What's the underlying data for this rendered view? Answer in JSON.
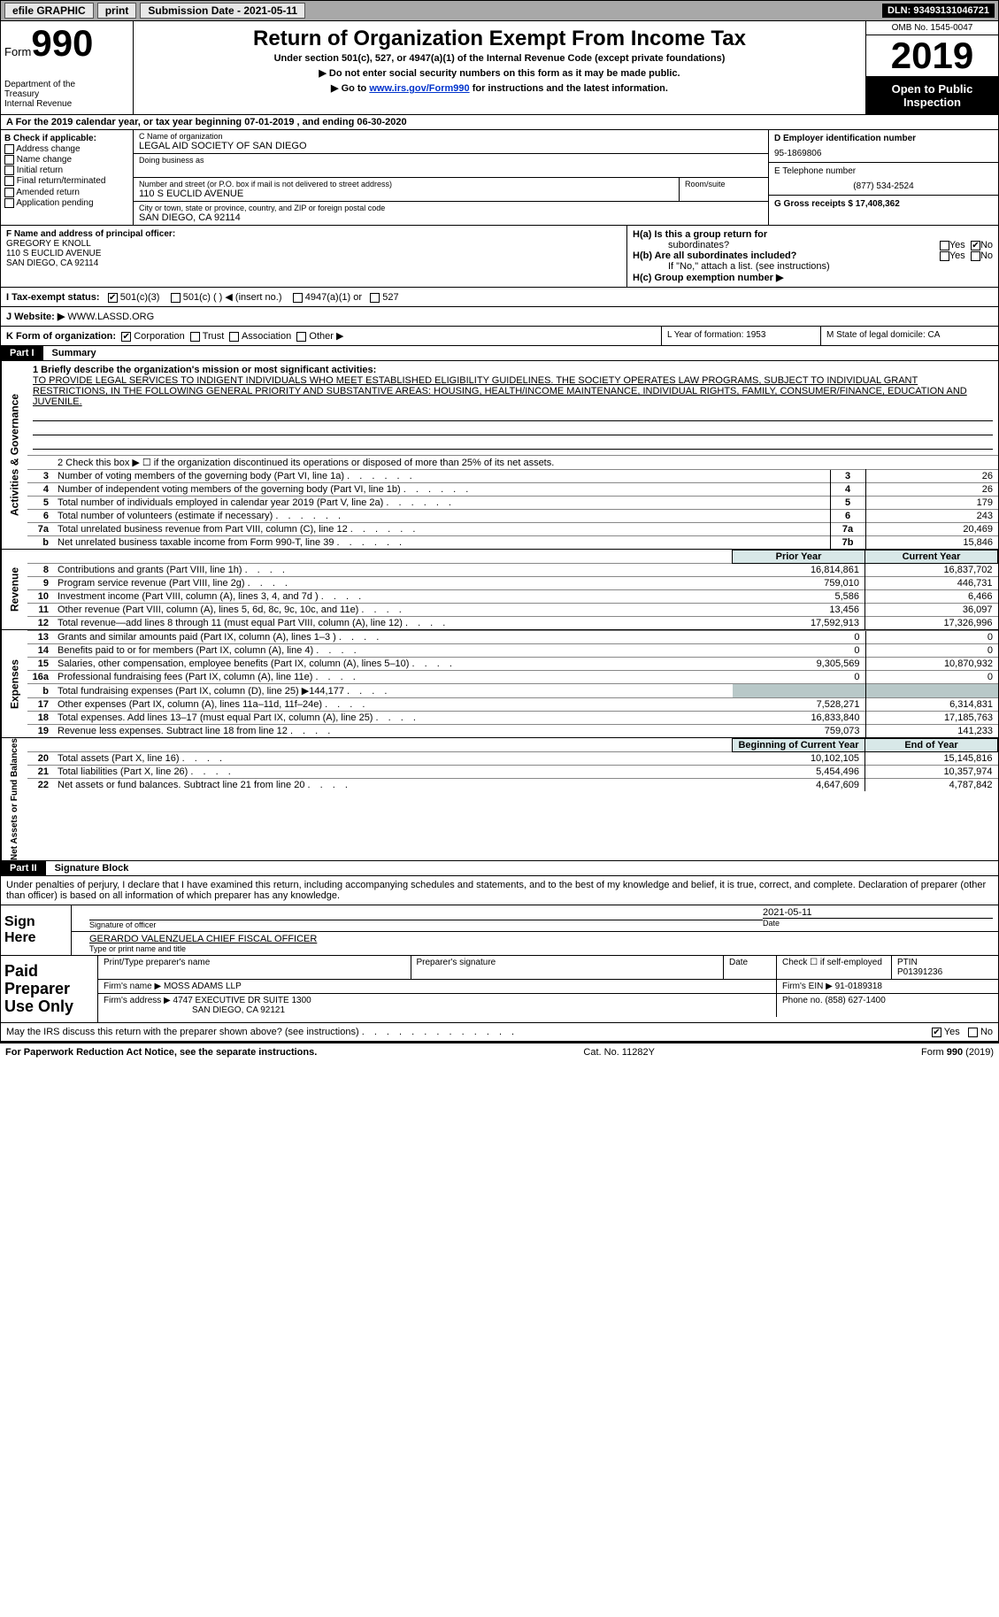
{
  "topbar": {
    "efile": "efile GRAPHIC",
    "print": "print",
    "submission": "Submission Date - 2021-05-11",
    "dln": "DLN: 93493131046721"
  },
  "header": {
    "form_word": "Form",
    "form_num": "990",
    "dept1": "Department of the",
    "dept2": "Treasury",
    "dept3": "Internal Revenue",
    "title": "Return of Organization Exempt From Income Tax",
    "subtitle": "Under section 501(c), 527, or 4947(a)(1) of the Internal Revenue Code (except private foundations)",
    "note1": "▶ Do not enter social security numbers on this form as it may be made public.",
    "note2_pre": "▶ Go to ",
    "note2_link": "www.irs.gov/Form990",
    "note2_post": " for instructions and the latest information.",
    "omb": "OMB No. 1545-0047",
    "year": "2019",
    "open": "Open to Public Inspection"
  },
  "period": "A For the 2019 calendar year, or tax year beginning 07-01-2019   , and ending 06-30-2020",
  "sectionB": {
    "label": "B Check if applicable:",
    "opts": [
      "Address change",
      "Name change",
      "Initial return",
      "Final return/terminated",
      "Amended return",
      "Application pending"
    ],
    "c_name_lbl": "C Name of organization",
    "c_name": "LEGAL AID SOCIETY OF SAN DIEGO",
    "dba_lbl": "Doing business as",
    "dba": "",
    "addr_lbl": "Number and street (or P.O. box if mail is not delivered to street address)",
    "room_lbl": "Room/suite",
    "addr": "110 S EUCLID AVENUE",
    "city_lbl": "City or town, state or province, country, and ZIP or foreign postal code",
    "city": "SAN DIEGO, CA  92114",
    "d_lbl": "D Employer identification number",
    "d_val": "95-1869806",
    "e_lbl": "E Telephone number",
    "e_val": "(877) 534-2524",
    "g_lbl": "G Gross receipts $ 17,408,362"
  },
  "sectionF": {
    "f_lbl": "F  Name and address of principal officer:",
    "f_name": "GREGORY E KNOLL",
    "f_addr1": "110 S EUCLID AVENUE",
    "f_addr2": "SAN DIEGO, CA  92114",
    "ha_lbl": "H(a)  Is this a group return for",
    "ha_sub": "subordinates?",
    "hb_lbl": "H(b)  Are all subordinates included?",
    "h_note": "If \"No,\" attach a list. (see instructions)",
    "hc_lbl": "H(c)  Group exemption number ▶",
    "yes": "Yes",
    "no": "No"
  },
  "sectionI": {
    "lbl": "I  Tax-exempt status:",
    "o1": "501(c)(3)",
    "o2": "501(c) (  ) ◀ (insert no.)",
    "o3": "4947(a)(1) or",
    "o4": "527"
  },
  "sectionJ": {
    "lbl": "J  Website: ▶",
    "val": "WWW.LASSD.ORG"
  },
  "sectionK": {
    "lbl": "K Form of organization:",
    "corp": "Corporation",
    "trust": "Trust",
    "assoc": "Association",
    "other": "Other ▶",
    "l_lbl": "L Year of formation: 1953",
    "m_lbl": "M State of legal domicile: CA"
  },
  "part1": {
    "tag": "Part I",
    "title": "Summary",
    "gov_tab": "Activities & Governance",
    "rev_tab": "Revenue",
    "exp_tab": "Expenses",
    "net_tab": "Net Assets or Fund Balances",
    "line1_lbl": "1  Briefly describe the organization's mission or most significant activities:",
    "mission": "TO PROVIDE LEGAL SERVICES TO INDIGENT INDIVIDUALS WHO MEET ESTABLISHED ELIGIBILITY GUIDELINES. THE SOCIETY OPERATES LAW PROGRAMS, SUBJECT TO INDIVIDUAL GRANT RESTRICTIONS, IN THE FOLLOWING GENERAL PRIORITY AND SUBSTANTIVE AREAS: HOUSING, HEALTH/INCOME MAINTENANCE, INDIVIDUAL RIGHTS, FAMILY, CONSUMER/FINANCE, EDUCATION AND JUVENILE.",
    "line2": "2  Check this box ▶ ☐  if the organization discontinued its operations or disposed of more than 25% of its net assets.",
    "rows_gov": [
      {
        "n": "3",
        "t": "Number of voting members of the governing body (Part VI, line 1a)",
        "box": "3",
        "v": "26"
      },
      {
        "n": "4",
        "t": "Number of independent voting members of the governing body (Part VI, line 1b)",
        "box": "4",
        "v": "26"
      },
      {
        "n": "5",
        "t": "Total number of individuals employed in calendar year 2019 (Part V, line 2a)",
        "box": "5",
        "v": "179"
      },
      {
        "n": "6",
        "t": "Total number of volunteers (estimate if necessary)",
        "box": "6",
        "v": "243"
      },
      {
        "n": "7a",
        "t": "Total unrelated business revenue from Part VIII, column (C), line 12",
        "box": "7a",
        "v": "20,469"
      },
      {
        "n": "b",
        "t": "Net unrelated business taxable income from Form 990-T, line 39",
        "box": "7b",
        "v": "15,846"
      }
    ],
    "prior_year": "Prior Year",
    "current_year": "Current Year",
    "rows_rev": [
      {
        "n": "8",
        "t": "Contributions and grants (Part VIII, line 1h)",
        "p": "16,814,861",
        "c": "16,837,702"
      },
      {
        "n": "9",
        "t": "Program service revenue (Part VIII, line 2g)",
        "p": "759,010",
        "c": "446,731"
      },
      {
        "n": "10",
        "t": "Investment income (Part VIII, column (A), lines 3, 4, and 7d )",
        "p": "5,586",
        "c": "6,466"
      },
      {
        "n": "11",
        "t": "Other revenue (Part VIII, column (A), lines 5, 6d, 8c, 9c, 10c, and 11e)",
        "p": "13,456",
        "c": "36,097"
      },
      {
        "n": "12",
        "t": "Total revenue—add lines 8 through 11 (must equal Part VIII, column (A), line 12)",
        "p": "17,592,913",
        "c": "17,326,996"
      }
    ],
    "rows_exp": [
      {
        "n": "13",
        "t": "Grants and similar amounts paid (Part IX, column (A), lines 1–3 )",
        "p": "0",
        "c": "0"
      },
      {
        "n": "14",
        "t": "Benefits paid to or for members (Part IX, column (A), line 4)",
        "p": "0",
        "c": "0"
      },
      {
        "n": "15",
        "t": "Salaries, other compensation, employee benefits (Part IX, column (A), lines 5–10)",
        "p": "9,305,569",
        "c": "10,870,932"
      },
      {
        "n": "16a",
        "t": "Professional fundraising fees (Part IX, column (A), line 11e)",
        "p": "0",
        "c": "0"
      },
      {
        "n": "b",
        "t": "Total fundraising expenses (Part IX, column (D), line 25) ▶144,177",
        "p": "",
        "c": "",
        "shade": true
      },
      {
        "n": "17",
        "t": "Other expenses (Part IX, column (A), lines 11a–11d, 11f–24e)",
        "p": "7,528,271",
        "c": "6,314,831"
      },
      {
        "n": "18",
        "t": "Total expenses. Add lines 13–17 (must equal Part IX, column (A), line 25)",
        "p": "16,833,840",
        "c": "17,185,763"
      },
      {
        "n": "19",
        "t": "Revenue less expenses. Subtract line 18 from line 12",
        "p": "759,073",
        "c": "141,233"
      }
    ],
    "beg_year": "Beginning of Current Year",
    "end_year": "End of Year",
    "rows_net": [
      {
        "n": "20",
        "t": "Total assets (Part X, line 16)",
        "p": "10,102,105",
        "c": "15,145,816"
      },
      {
        "n": "21",
        "t": "Total liabilities (Part X, line 26)",
        "p": "5,454,496",
        "c": "10,357,974"
      },
      {
        "n": "22",
        "t": "Net assets or fund balances. Subtract line 21 from line 20",
        "p": "4,647,609",
        "c": "4,787,842"
      }
    ]
  },
  "part2": {
    "tag": "Part II",
    "title": "Signature Block",
    "perjury": "Under penalties of perjury, I declare that I have examined this return, including accompanying schedules and statements, and to the best of my knowledge and belief, it is true, correct, and complete. Declaration of preparer (other than officer) is based on all information of which preparer has any knowledge.",
    "sign_here": "Sign Here",
    "sig_officer": "Signature of officer",
    "sig_date": "2021-05-11",
    "date_lbl": "Date",
    "officer_name": "GERARDO VALENZUELA  CHIEF FISCAL OFFICER",
    "officer_type": "Type or print name and title",
    "paid_lbl": "Paid Preparer Use Only",
    "prep_name_lbl": "Print/Type preparer's name",
    "prep_sig_lbl": "Preparer's signature",
    "prep_date_lbl": "Date",
    "prep_check": "Check ☐ if self-employed",
    "ptin_lbl": "PTIN",
    "ptin": "P01391236",
    "firm_name_lbl": "Firm's name    ▶",
    "firm_name": "MOSS ADAMS LLP",
    "firm_ein_lbl": "Firm's EIN ▶",
    "firm_ein": "91-0189318",
    "firm_addr_lbl": "Firm's address ▶",
    "firm_addr1": "4747 EXECUTIVE DR SUITE 1300",
    "firm_addr2": "SAN DIEGO, CA  92121",
    "phone_lbl": "Phone no.",
    "phone": "(858) 627-1400",
    "discuss": "May the IRS discuss this return with the preparer shown above? (see instructions)",
    "yes": "Yes",
    "no": "No"
  },
  "footer": {
    "l": "For Paperwork Reduction Act Notice, see the separate instructions.",
    "m": "Cat. No. 11282Y",
    "r": "Form 990 (2019)"
  }
}
